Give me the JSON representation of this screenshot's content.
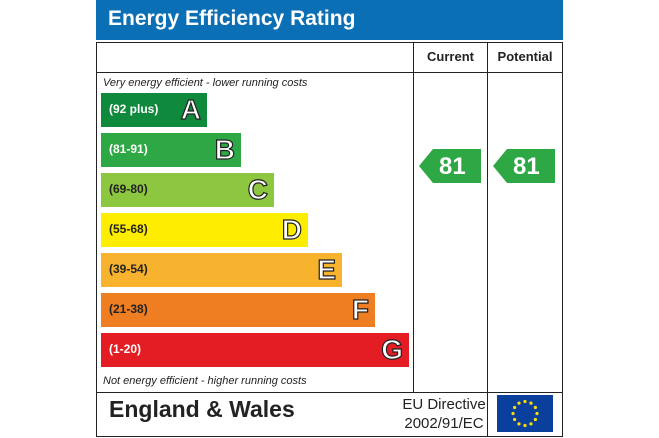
{
  "title": "Energy Efficiency Rating",
  "columns": {
    "current": "Current",
    "potential": "Potential"
  },
  "top_note": "Very energy efficient - lower running costs",
  "bottom_note": "Not energy efficient - higher running costs",
  "bands": [
    {
      "range": "(92 plus)",
      "letter": "A",
      "color": "#0f8a3c",
      "text_color": "#ffffff"
    },
    {
      "range": "(81-91)",
      "letter": "B",
      "color": "#2da845",
      "text_color": "#ffffff"
    },
    {
      "range": "(69-80)",
      "letter": "C",
      "color": "#8dc63f",
      "text_color": "#222222"
    },
    {
      "range": "(55-68)",
      "letter": "D",
      "color": "#ffed00",
      "text_color": "#222222"
    },
    {
      "range": "(39-54)",
      "letter": "E",
      "color": "#f7b22e",
      "text_color": "#222222"
    },
    {
      "range": "(21-38)",
      "letter": "F",
      "color": "#ef7d22",
      "text_color": "#222222"
    },
    {
      "range": "(1-20)",
      "letter": "G",
      "color": "#e31d23",
      "text_color": "#ffffff"
    }
  ],
  "current_rating": {
    "value": "81",
    "band": "B",
    "color": "#2da845"
  },
  "potential_rating": {
    "value": "81",
    "band": "B",
    "color": "#2da845"
  },
  "footer": {
    "region": "England & Wales",
    "directive_line1": "EU Directive",
    "directive_line2": "2002/91/EC"
  },
  "flag": {
    "field_color": "#0b3f9c",
    "star_color": "#ffdd00",
    "icon": "eu-flag-icon"
  }
}
